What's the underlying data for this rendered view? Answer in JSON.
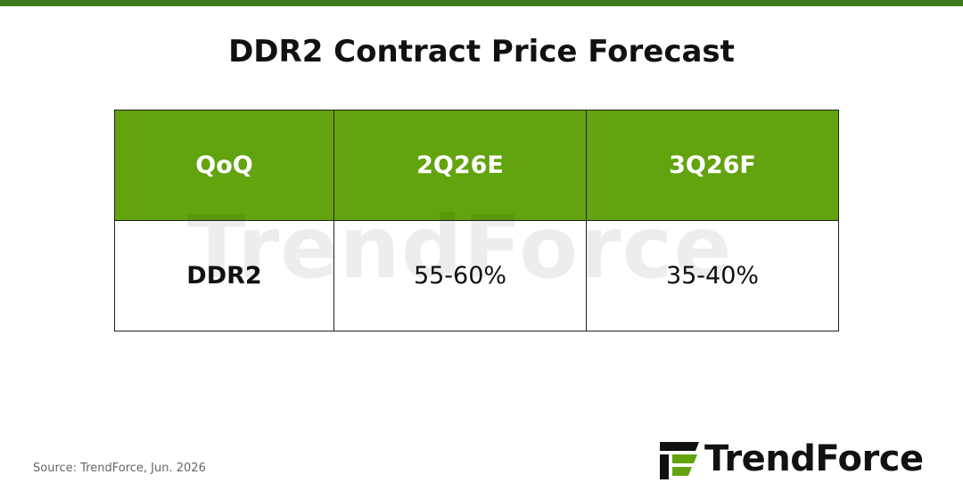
{
  "header": {
    "title": "DDR2 Contract Price Forecast"
  },
  "table": {
    "columns": [
      "QoQ",
      "2Q26E",
      "3Q26F"
    ],
    "rows": [
      [
        "DDR2",
        "55-60%",
        "35-40%"
      ]
    ]
  },
  "footer": {
    "source": "Source: TrendForce, Jun. 2026"
  },
  "brand": "TrendForce"
}
